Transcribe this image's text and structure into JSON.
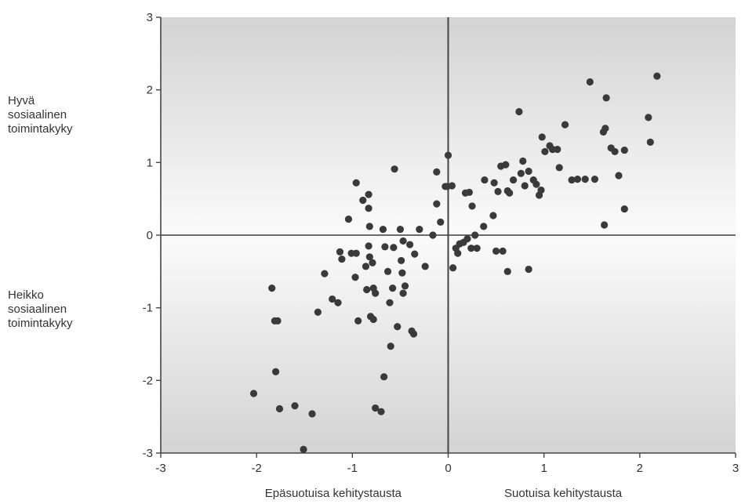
{
  "chart_data": {
    "type": "scatter",
    "title": "",
    "xlim": [
      -3,
      3
    ],
    "ylim": [
      -3,
      3
    ],
    "x_ticks": [
      "-3",
      "-2",
      "-1",
      "0",
      "1",
      "2",
      "3"
    ],
    "y_ticks": [
      "3",
      "2",
      "1",
      "0",
      "-1",
      "-2",
      "-3"
    ],
    "x_tick_values": [
      -3,
      -2,
      -1,
      0,
      1,
      2,
      3
    ],
    "y_tick_values": [
      3,
      2,
      1,
      0,
      -1,
      -2,
      -3
    ],
    "x_captions": {
      "negative": "Epäsuotuisa kehitystausta",
      "positive": "Suotuisa kehitystausta"
    },
    "y_captions": {
      "positive": [
        "Hyvä",
        "sosiaalinen",
        "toimintakyky"
      ],
      "negative": [
        "Heikko",
        "sosiaalinen",
        "toimintakyky"
      ]
    },
    "grid": false,
    "points": [
      [
        -2.03,
        -2.18
      ],
      [
        -1.84,
        -0.73
      ],
      [
        -1.81,
        -1.18
      ],
      [
        -1.78,
        -1.18
      ],
      [
        -1.8,
        -1.88
      ],
      [
        -1.76,
        -2.39
      ],
      [
        -1.6,
        -2.35
      ],
      [
        -1.42,
        -2.46
      ],
      [
        -1.51,
        -2.95
      ],
      [
        -1.36,
        -1.06
      ],
      [
        -1.29,
        -0.53
      ],
      [
        -1.21,
        -0.88
      ],
      [
        -1.15,
        -0.93
      ],
      [
        -1.13,
        -0.23
      ],
      [
        -1.11,
        -0.33
      ],
      [
        -1.04,
        0.22
      ],
      [
        -1.01,
        -0.25
      ],
      [
        -0.96,
        -0.25
      ],
      [
        -0.97,
        -0.58
      ],
      [
        -0.94,
        -1.18
      ],
      [
        -0.96,
        0.72
      ],
      [
        -0.89,
        0.48
      ],
      [
        -0.86,
        -0.43
      ],
      [
        -0.85,
        -0.75
      ],
      [
        -0.83,
        0.56
      ],
      [
        -0.83,
        0.37
      ],
      [
        -0.82,
        0.12
      ],
      [
        -0.83,
        -0.15
      ],
      [
        -0.82,
        -0.3
      ],
      [
        -0.79,
        -0.38
      ],
      [
        -0.78,
        -0.73
      ],
      [
        -0.76,
        -0.8
      ],
      [
        -0.78,
        -1.16
      ],
      [
        -0.81,
        -1.12
      ],
      [
        -0.76,
        -2.38
      ],
      [
        -0.7,
        -2.43
      ],
      [
        -0.68,
        0.08
      ],
      [
        -0.66,
        -0.16
      ],
      [
        -0.63,
        -0.5
      ],
      [
        -0.67,
        -1.95
      ],
      [
        -0.61,
        -0.93
      ],
      [
        -0.58,
        -0.73
      ],
      [
        -0.6,
        -1.53
      ],
      [
        -0.56,
        0.91
      ],
      [
        -0.57,
        -0.17
      ],
      [
        -0.53,
        -1.26
      ],
      [
        -0.5,
        0.08
      ],
      [
        -0.47,
        -0.08
      ],
      [
        -0.49,
        -0.35
      ],
      [
        -0.48,
        -0.52
      ],
      [
        -0.47,
        -0.8
      ],
      [
        -0.45,
        -0.7
      ],
      [
        -0.4,
        -0.13
      ],
      [
        -0.38,
        -1.32
      ],
      [
        -0.36,
        -1.36
      ],
      [
        -0.35,
        -0.26
      ],
      [
        -0.3,
        0.08
      ],
      [
        -0.24,
        -0.43
      ],
      [
        -0.16,
        0.0
      ],
      [
        -0.12,
        0.43
      ],
      [
        -0.12,
        0.87
      ],
      [
        -0.08,
        0.18
      ],
      [
        -0.03,
        0.67
      ],
      [
        -0.01,
        0.67
      ],
      [
        0.0,
        1.1
      ],
      [
        0.04,
        0.68
      ],
      [
        0.05,
        -0.45
      ],
      [
        0.08,
        -0.18
      ],
      [
        0.1,
        -0.25
      ],
      [
        0.12,
        -0.12
      ],
      [
        0.16,
        -0.1
      ],
      [
        0.18,
        0.58
      ],
      [
        0.2,
        -0.05
      ],
      [
        0.22,
        0.59
      ],
      [
        0.24,
        -0.18
      ],
      [
        0.25,
        0.4
      ],
      [
        0.28,
        0.0
      ],
      [
        0.3,
        -0.18
      ],
      [
        0.37,
        0.12
      ],
      [
        0.38,
        0.76
      ],
      [
        0.47,
        0.27
      ],
      [
        0.48,
        0.72
      ],
      [
        0.5,
        -0.22
      ],
      [
        0.52,
        0.6
      ],
      [
        0.55,
        0.95
      ],
      [
        0.57,
        -0.22
      ],
      [
        0.6,
        0.97
      ],
      [
        0.62,
        0.61
      ],
      [
        0.64,
        0.58
      ],
      [
        0.62,
        -0.5
      ],
      [
        0.68,
        0.76
      ],
      [
        0.74,
        1.7
      ],
      [
        0.76,
        0.85
      ],
      [
        0.78,
        1.02
      ],
      [
        0.8,
        0.68
      ],
      [
        0.84,
        0.88
      ],
      [
        0.84,
        -0.47
      ],
      [
        0.89,
        0.76
      ],
      [
        0.92,
        0.7
      ],
      [
        0.95,
        0.55
      ],
      [
        0.97,
        0.62
      ],
      [
        0.98,
        1.35
      ],
      [
        1.01,
        1.15
      ],
      [
        1.06,
        1.23
      ],
      [
        1.09,
        1.18
      ],
      [
        1.14,
        1.18
      ],
      [
        1.16,
        0.93
      ],
      [
        1.22,
        1.52
      ],
      [
        1.29,
        0.76
      ],
      [
        1.35,
        0.77
      ],
      [
        1.43,
        0.77
      ],
      [
        1.48,
        2.11
      ],
      [
        1.53,
        0.77
      ],
      [
        1.63,
        0.14
      ],
      [
        1.62,
        1.42
      ],
      [
        1.64,
        1.47
      ],
      [
        1.65,
        1.89
      ],
      [
        1.7,
        1.2
      ],
      [
        1.74,
        1.15
      ],
      [
        1.78,
        0.82
      ],
      [
        1.84,
        0.36
      ],
      [
        1.84,
        1.17
      ],
      [
        2.09,
        1.62
      ],
      [
        2.11,
        1.28
      ],
      [
        2.18,
        2.19
      ]
    ]
  }
}
